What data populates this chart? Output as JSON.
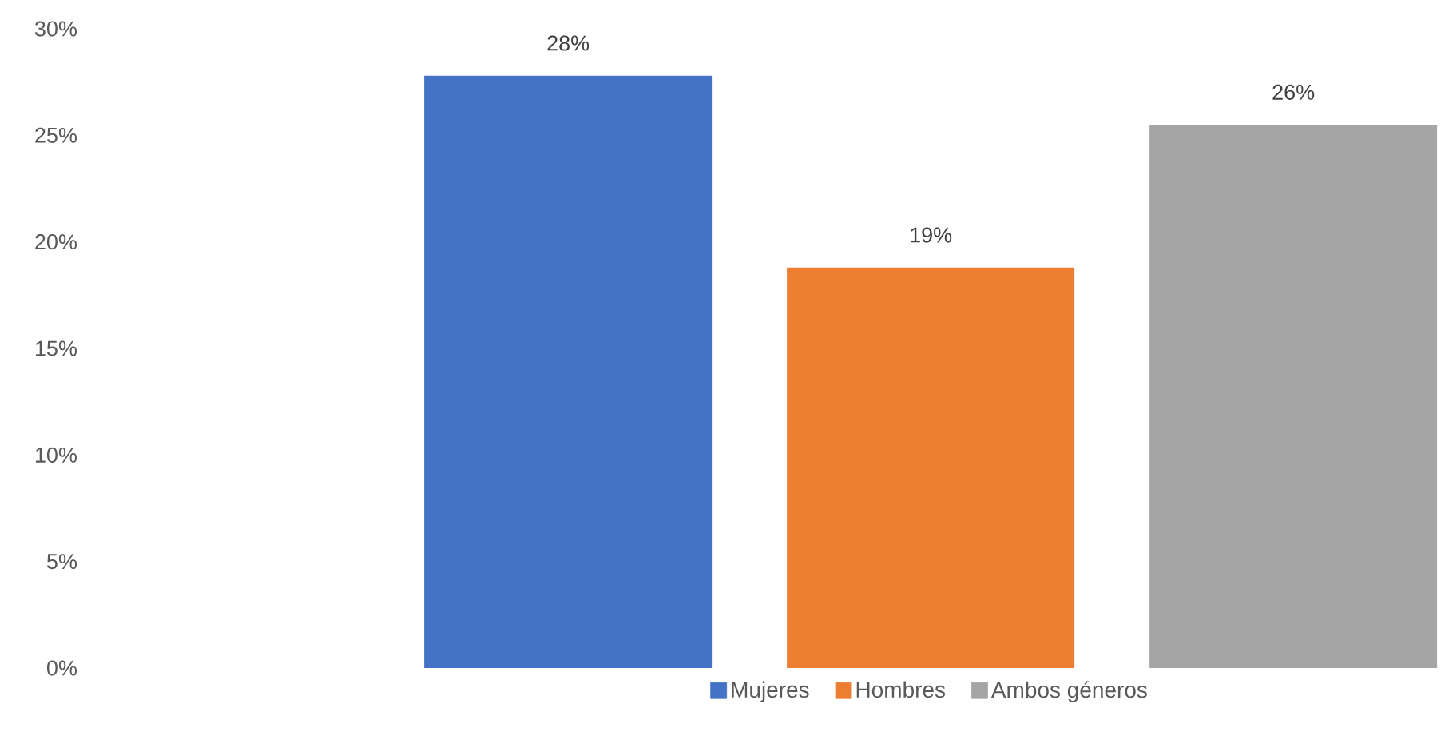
{
  "chart_data": {
    "type": "bar",
    "categories": [
      null
    ],
    "series": [
      {
        "name": "Mujeres",
        "color": "#4472c4",
        "values": [
          27.8
        ],
        "value_labels": [
          "28%"
        ]
      },
      {
        "name": "Hombres",
        "color": "#ed7d31",
        "values": [
          18.8
        ],
        "value_labels": [
          "19%"
        ]
      },
      {
        "name": "Ambos géneros",
        "color": "#a5a5a5",
        "values": [
          25.5
        ],
        "value_labels": [
          "26%"
        ]
      }
    ],
    "ylim": [
      0,
      30
    ],
    "yticks": [
      {
        "value": 0,
        "label": "0%"
      },
      {
        "value": 5,
        "label": "5%"
      },
      {
        "value": 10,
        "label": "10%"
      },
      {
        "value": 15,
        "label": "15%"
      },
      {
        "value": 20,
        "label": "20%"
      },
      {
        "value": 25,
        "label": "25%"
      },
      {
        "value": 30,
        "label": "30%"
      }
    ],
    "grid": false,
    "legend": "bottom"
  }
}
